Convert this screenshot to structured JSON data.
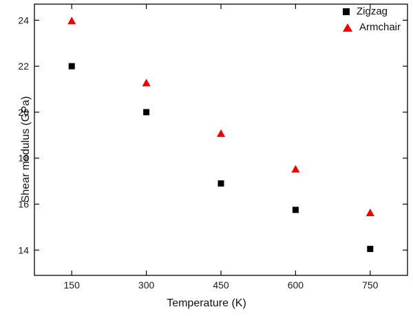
{
  "colors": {
    "zigzag": "#000000",
    "armchair": "#f20000",
    "axis": "#000000",
    "background": "#ffffff"
  },
  "axes": {
    "xlabel": "Temperature (K)",
    "ylabel": "Shear modulus (GPa)",
    "x_ticks": [
      150,
      300,
      450,
      600,
      750
    ],
    "y_ticks": [
      14,
      16,
      18,
      20,
      22,
      24
    ],
    "xlim": [
      75,
      825
    ],
    "ylim": [
      12.9,
      24.7
    ]
  },
  "legend": {
    "items": [
      {
        "label": "Zigzag",
        "marker": "square",
        "color": "#000000"
      },
      {
        "label": "Armchair",
        "marker": "triangle",
        "color": "#f20000"
      }
    ]
  },
  "chart_data": {
    "type": "scatter",
    "title": "",
    "xlabel": "Temperature (K)",
    "ylabel": "Shear modulus (GPa)",
    "x": [
      150,
      300,
      450,
      600,
      750
    ],
    "series": [
      {
        "name": "Zigzag",
        "marker": "square",
        "color": "#000000",
        "values": [
          22.0,
          20.0,
          16.9,
          15.75,
          14.05
        ]
      },
      {
        "name": "Armchair",
        "marker": "triangle",
        "color": "#f20000",
        "values": [
          23.95,
          21.25,
          19.05,
          17.5,
          15.6
        ]
      }
    ],
    "xlim": [
      75,
      825
    ],
    "ylim": [
      12.9,
      24.7
    ],
    "grid": false,
    "legend_position": "top-right"
  }
}
